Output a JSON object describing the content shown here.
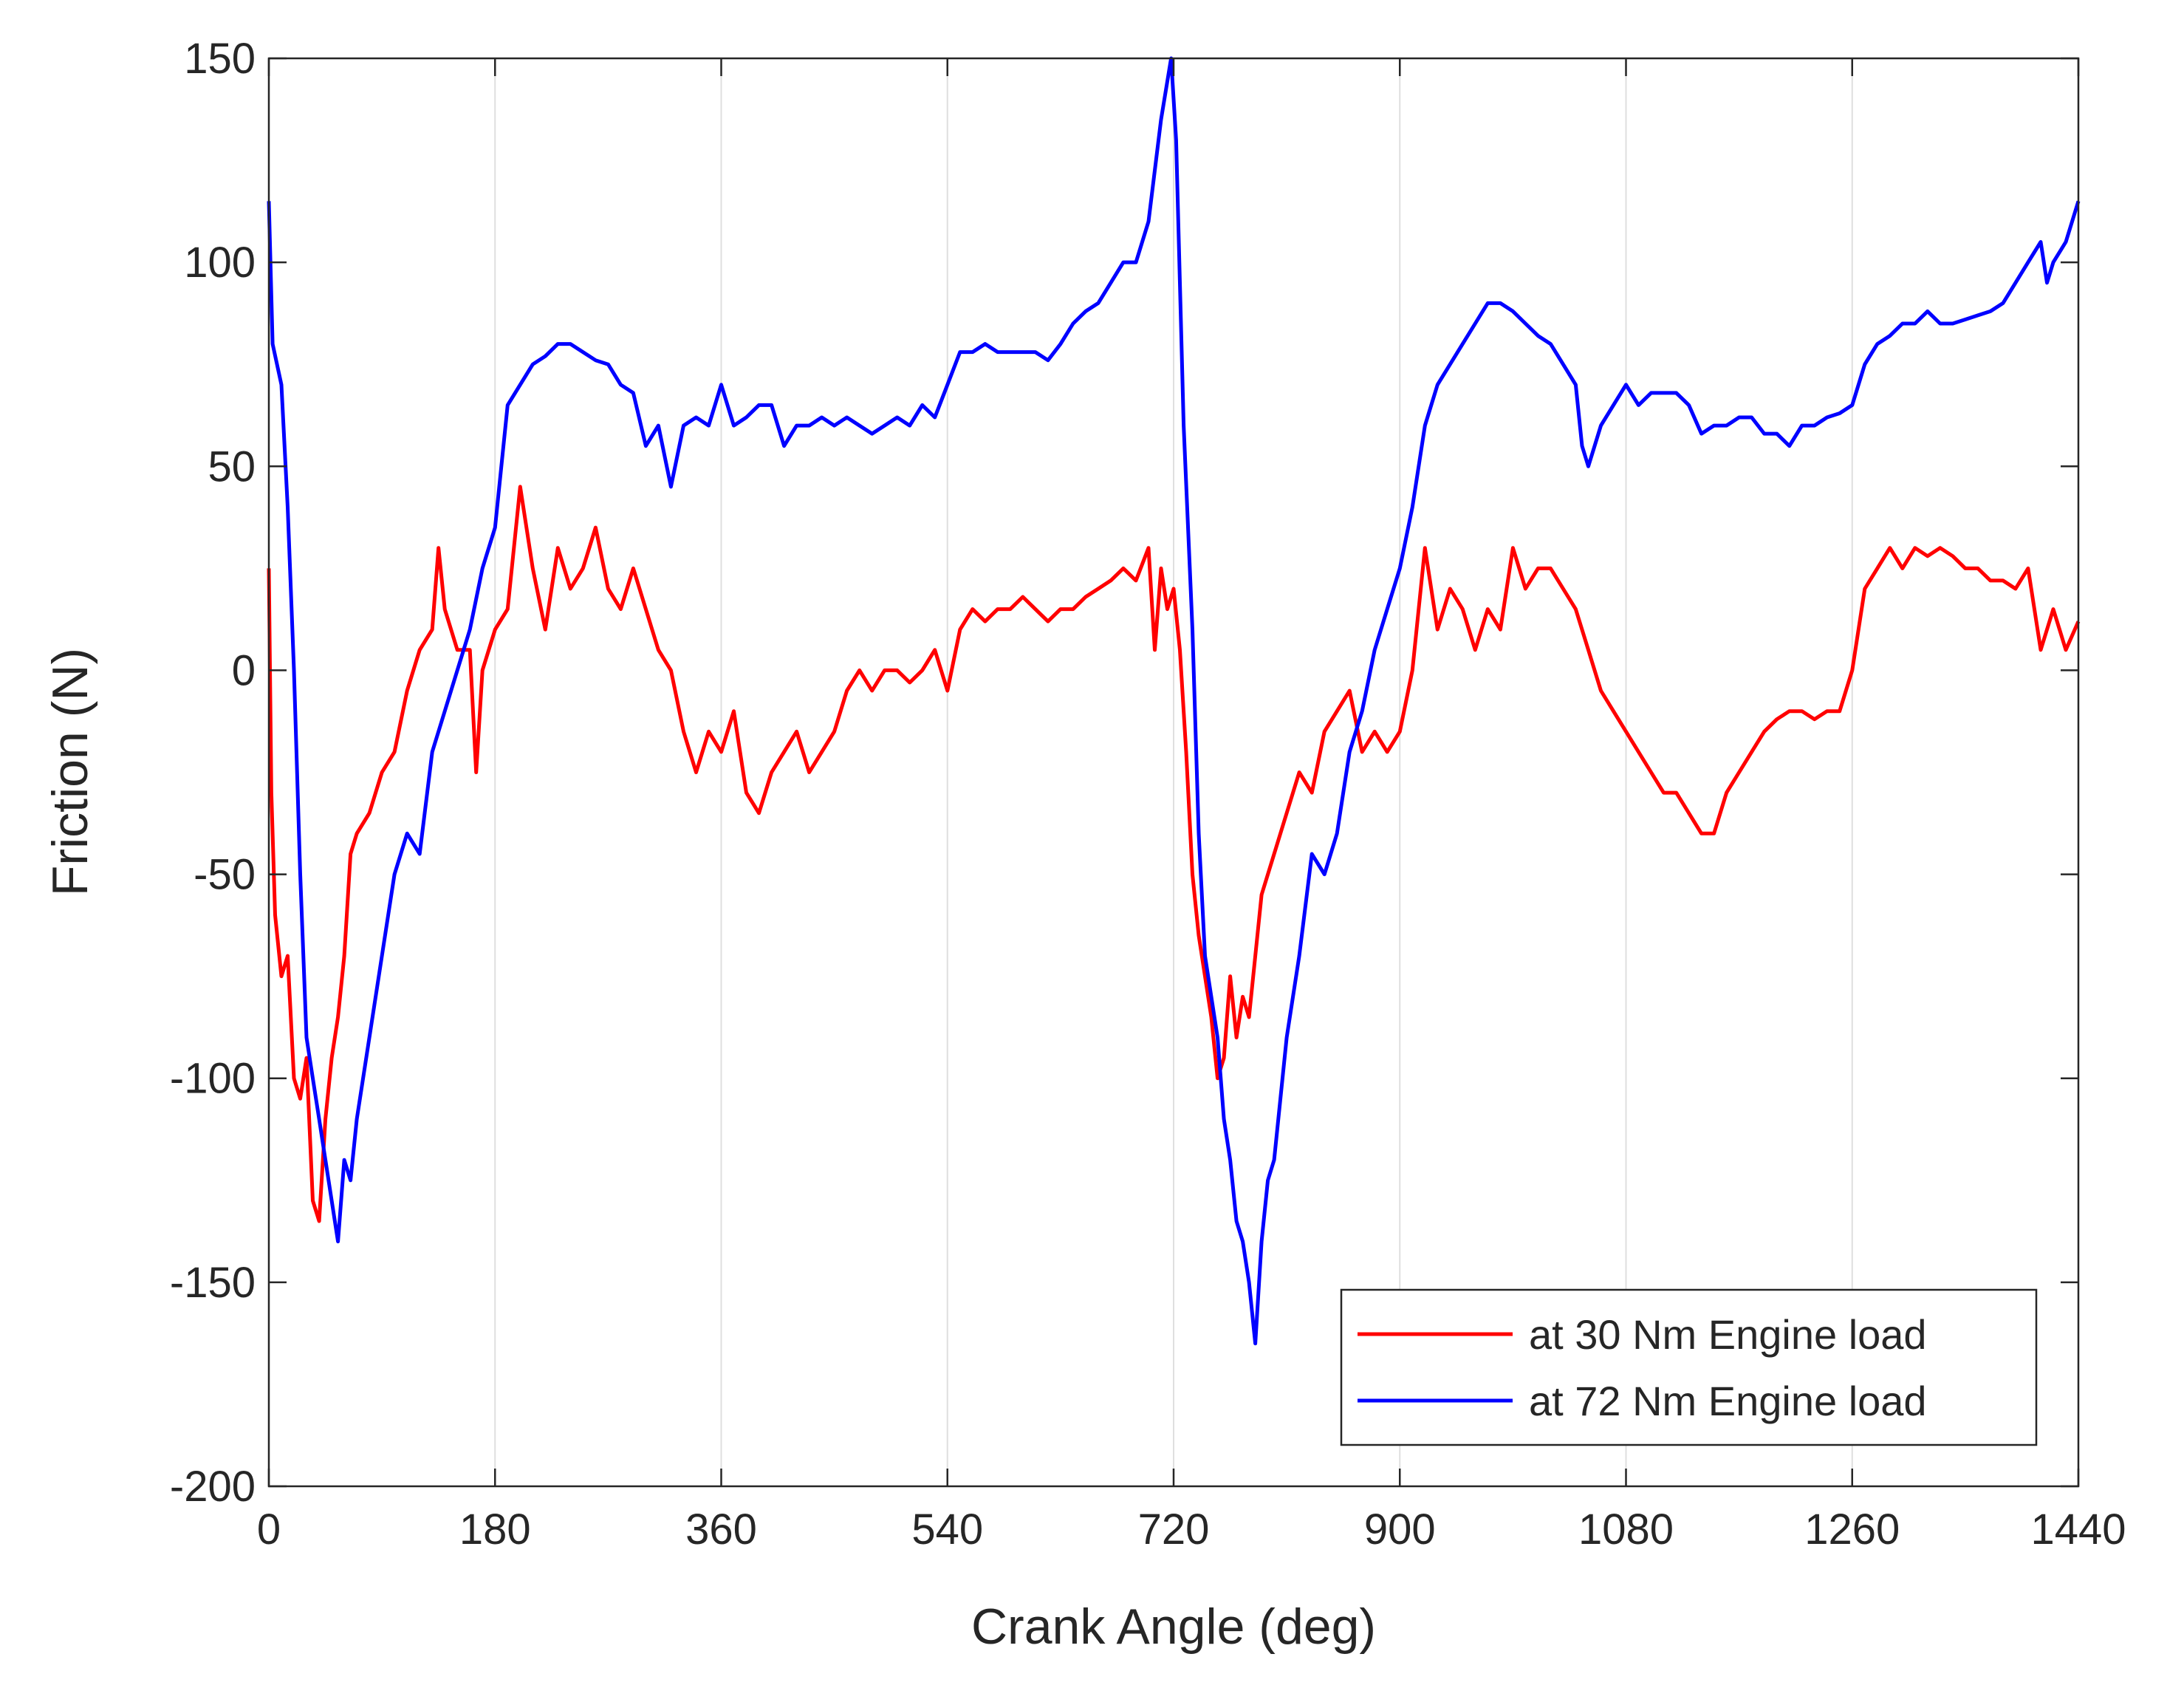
{
  "chart_data": {
    "type": "line",
    "x_label": "Crank Angle (deg)",
    "y_label": "Friction (N)",
    "xlim": [
      0,
      1440
    ],
    "ylim": [
      -200,
      150
    ],
    "xticks": [
      0,
      180,
      360,
      540,
      720,
      900,
      1080,
      1260,
      1440
    ],
    "yticks": [
      -200,
      -150,
      -100,
      -50,
      0,
      50,
      100,
      150
    ],
    "xgrid": true,
    "ygrid": false,
    "legend": "lower right",
    "series": [
      {
        "name": "at 30 Nm Engine load",
        "color": "#ff0000",
        "x": [
          0,
          2,
          5,
          10,
          15,
          20,
          25,
          30,
          35,
          40,
          45,
          50,
          55,
          60,
          65,
          70,
          80,
          90,
          100,
          110,
          120,
          130,
          135,
          140,
          150,
          160,
          165,
          170,
          180,
          190,
          200,
          210,
          220,
          230,
          240,
          250,
          260,
          270,
          280,
          290,
          300,
          310,
          320,
          330,
          340,
          350,
          360,
          370,
          380,
          390,
          400,
          410,
          420,
          430,
          440,
          450,
          460,
          470,
          480,
          490,
          500,
          510,
          520,
          530,
          540,
          550,
          560,
          570,
          580,
          590,
          600,
          610,
          620,
          630,
          640,
          650,
          660,
          670,
          680,
          690,
          700,
          705,
          710,
          715,
          720,
          725,
          730,
          735,
          740,
          745,
          750,
          755,
          760,
          765,
          770,
          775,
          780,
          790,
          800,
          810,
          820,
          830,
          840,
          850,
          860,
          870,
          880,
          890,
          900,
          910,
          920,
          930,
          940,
          950,
          960,
          970,
          980,
          990,
          1000,
          1010,
          1020,
          1030,
          1040,
          1050,
          1060,
          1070,
          1080,
          1090,
          1100,
          1110,
          1120,
          1130,
          1140,
          1150,
          1160,
          1170,
          1180,
          1190,
          1200,
          1210,
          1220,
          1230,
          1240,
          1250,
          1260,
          1270,
          1280,
          1290,
          1300,
          1310,
          1320,
          1330,
          1340,
          1350,
          1360,
          1370,
          1380,
          1390,
          1400,
          1410,
          1420,
          1430,
          1440
        ],
        "values": [
          25,
          -30,
          -60,
          -75,
          -70,
          -100,
          -105,
          -95,
          -130,
          -135,
          -110,
          -95,
          -85,
          -70,
          -45,
          -40,
          -35,
          -25,
          -20,
          -5,
          5,
          10,
          30,
          15,
          5,
          5,
          -25,
          0,
          10,
          15,
          45,
          25,
          10,
          30,
          20,
          25,
          35,
          20,
          15,
          25,
          15,
          5,
          0,
          -15,
          -25,
          -15,
          -20,
          -10,
          -30,
          -35,
          -25,
          -20,
          -15,
          -25,
          -20,
          -15,
          -5,
          0,
          -5,
          0,
          0,
          -3,
          0,
          5,
          -5,
          10,
          15,
          12,
          15,
          15,
          18,
          15,
          12,
          15,
          15,
          18,
          20,
          22,
          25,
          22,
          30,
          5,
          25,
          15,
          20,
          5,
          -20,
          -50,
          -65,
          -75,
          -85,
          -100,
          -95,
          -75,
          -90,
          -80,
          -85,
          -55,
          -45,
          -35,
          -25,
          -30,
          -15,
          -10,
          -5,
          -20,
          -15,
          -20,
          -15,
          0,
          30,
          10,
          20,
          15,
          5,
          15,
          10,
          30,
          20,
          25,
          25,
          20,
          15,
          5,
          -5,
          -10,
          -15,
          -20,
          -25,
          -30,
          -30,
          -35,
          -40,
          -40,
          -30,
          -25,
          -20,
          -15,
          -12,
          -10,
          -10,
          -12,
          -10,
          -10,
          0,
          20,
          25,
          30,
          25,
          30,
          28,
          30,
          28,
          25,
          25,
          22,
          22,
          20,
          25,
          5,
          15,
          5,
          12
        ]
      },
      {
        "name": "at 72 Nm Engine load",
        "color": "#0000ff",
        "x": [
          0,
          3,
          10,
          15,
          20,
          25,
          30,
          35,
          40,
          45,
          50,
          55,
          60,
          65,
          70,
          80,
          90,
          100,
          110,
          120,
          130,
          140,
          150,
          160,
          170,
          180,
          190,
          200,
          210,
          220,
          230,
          240,
          250,
          260,
          270,
          280,
          290,
          300,
          310,
          320,
          330,
          340,
          350,
          360,
          370,
          380,
          390,
          400,
          410,
          420,
          430,
          440,
          450,
          460,
          470,
          480,
          490,
          500,
          510,
          520,
          530,
          540,
          550,
          560,
          570,
          580,
          590,
          600,
          610,
          620,
          630,
          640,
          650,
          660,
          670,
          680,
          690,
          700,
          710,
          718,
          722,
          728,
          735,
          740,
          745,
          750,
          755,
          760,
          765,
          770,
          775,
          780,
          785,
          790,
          795,
          800,
          810,
          820,
          830,
          840,
          850,
          860,
          870,
          880,
          890,
          900,
          910,
          920,
          930,
          940,
          950,
          960,
          970,
          980,
          990,
          1000,
          1010,
          1020,
          1030,
          1040,
          1045,
          1050,
          1060,
          1070,
          1080,
          1090,
          1100,
          1110,
          1120,
          1130,
          1140,
          1150,
          1160,
          1170,
          1180,
          1190,
          1200,
          1210,
          1220,
          1230,
          1240,
          1250,
          1260,
          1270,
          1280,
          1290,
          1300,
          1310,
          1320,
          1330,
          1340,
          1350,
          1360,
          1370,
          1380,
          1390,
          1400,
          1410,
          1415,
          1420,
          1430,
          1440
        ],
        "values": [
          115,
          80,
          70,
          40,
          0,
          -50,
          -90,
          -100,
          -110,
          -120,
          -130,
          -140,
          -120,
          -125,
          -110,
          -90,
          -70,
          -50,
          -40,
          -45,
          -20,
          -10,
          0,
          10,
          25,
          35,
          65,
          70,
          75,
          77,
          80,
          80,
          78,
          76,
          75,
          70,
          68,
          55,
          60,
          45,
          60,
          62,
          60,
          70,
          60,
          62,
          65,
          65,
          55,
          60,
          60,
          62,
          60,
          62,
          60,
          58,
          60,
          62,
          60,
          65,
          62,
          70,
          78,
          78,
          80,
          78,
          78,
          78,
          78,
          76,
          80,
          85,
          88,
          90,
          95,
          100,
          100,
          110,
          135,
          150,
          130,
          60,
          10,
          -40,
          -70,
          -80,
          -90,
          -110,
          -120,
          -135,
          -140,
          -150,
          -165,
          -140,
          -125,
          -120,
          -90,
          -70,
          -45,
          -50,
          -40,
          -20,
          -10,
          5,
          15,
          25,
          40,
          60,
          70,
          75,
          80,
          85,
          90,
          90,
          88,
          85,
          82,
          80,
          75,
          70,
          55,
          50,
          60,
          65,
          70,
          65,
          68,
          68,
          68,
          65,
          58,
          60,
          60,
          62,
          62,
          58,
          58,
          55,
          60,
          60,
          62,
          63,
          65,
          75,
          80,
          82,
          85,
          85,
          88,
          85,
          85,
          86,
          87,
          88,
          90,
          95,
          100,
          105,
          95,
          100,
          105,
          115
        ]
      }
    ]
  }
}
